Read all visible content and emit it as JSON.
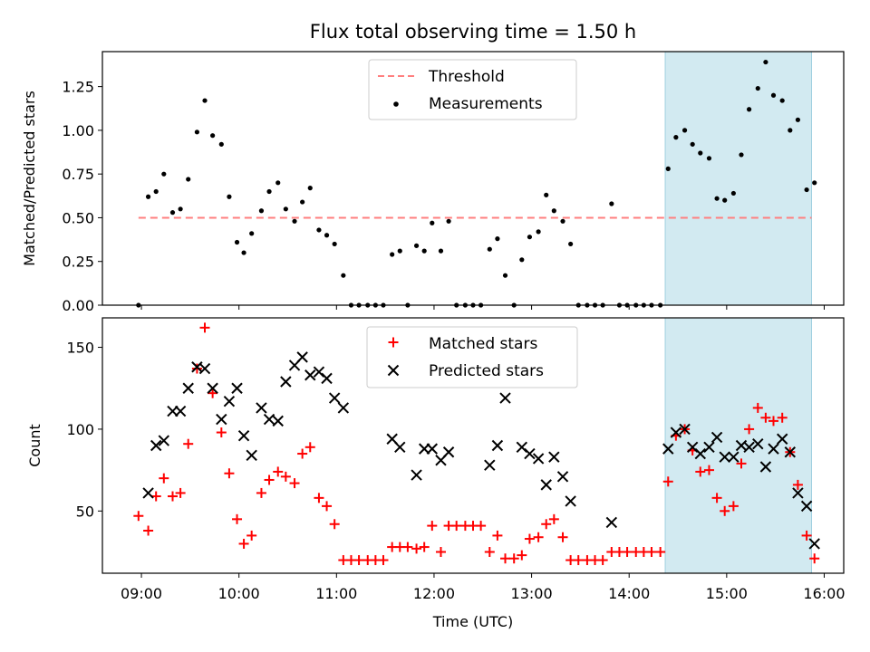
{
  "figure": {
    "title": "Flux total observing time = 1.50 h",
    "xlabel": "Time (UTC)",
    "x_ticks": [
      "09:00",
      "10:00",
      "11:00",
      "12:00",
      "13:00",
      "14:00",
      "15:00",
      "16:00"
    ],
    "x_tick_hours": [
      9,
      10,
      11,
      12,
      13,
      14,
      15,
      16
    ],
    "xlim_hours": [
      8.6,
      16.2
    ],
    "highlight_span_hours": [
      14.37,
      15.87
    ],
    "highlight_color": "#add8e6"
  },
  "chart_data": [
    {
      "type": "scatter",
      "ylabel": "Matched/Predicted stars",
      "ylim": [
        0,
        1.45
      ],
      "y_ticks": [
        "0.00",
        "0.25",
        "0.50",
        "0.75",
        "1.00",
        "1.25"
      ],
      "y_tick_values": [
        0,
        0.25,
        0.5,
        0.75,
        1.0,
        1.25
      ],
      "legend": {
        "placement": "top-center",
        "entries": [
          "Threshold",
          "Measurements"
        ]
      },
      "threshold": {
        "name": "Threshold",
        "value": 0.5,
        "x_range_hours": [
          8.97,
          15.87
        ],
        "color": "#ff7f7f",
        "style": "dashed"
      },
      "series": [
        {
          "name": "Measurements",
          "color": "#000000",
          "marker": "dot",
          "x_hours": [
            8.97,
            9.07,
            9.15,
            9.23,
            9.32,
            9.4,
            9.48,
            9.57,
            9.65,
            9.73,
            9.82,
            9.9,
            9.98,
            10.05,
            10.13,
            10.23,
            10.31,
            10.4,
            10.48,
            10.57,
            10.65,
            10.73,
            10.82,
            10.9,
            10.98,
            11.07,
            11.15,
            11.23,
            11.32,
            11.4,
            11.48,
            11.57,
            11.65,
            11.73,
            11.82,
            11.9,
            11.98,
            12.07,
            12.15,
            12.23,
            12.32,
            12.4,
            12.48,
            12.57,
            12.65,
            12.73,
            12.82,
            12.9,
            12.98,
            13.07,
            13.15,
            13.23,
            13.32,
            13.4,
            13.48,
            13.57,
            13.65,
            13.73,
            13.82,
            13.9,
            13.98,
            14.07,
            14.15,
            14.23,
            14.32,
            14.4,
            14.48,
            14.57,
            14.65,
            14.73,
            14.82,
            14.9,
            14.98,
            15.07,
            15.15,
            15.23,
            15.32,
            15.4,
            15.48,
            15.57,
            15.65,
            15.73,
            15.82,
            15.9
          ],
          "y": [
            0.0,
            0.62,
            0.65,
            0.75,
            0.53,
            0.55,
            0.72,
            0.99,
            1.17,
            0.97,
            0.92,
            0.62,
            0.36,
            0.3,
            0.41,
            0.54,
            0.65,
            0.7,
            0.55,
            0.48,
            0.59,
            0.67,
            0.43,
            0.4,
            0.35,
            0.17,
            0.0,
            0.0,
            0.0,
            0.0,
            0.0,
            0.29,
            0.31,
            0.0,
            0.34,
            0.31,
            0.47,
            0.31,
            0.48,
            0.0,
            0.0,
            0.0,
            0.0,
            0.32,
            0.38,
            0.17,
            0.0,
            0.26,
            0.39,
            0.42,
            0.63,
            0.54,
            0.48,
            0.35,
            0.0,
            0.0,
            0.0,
            0.0,
            0.58,
            0.0,
            0.0,
            0.0,
            0.0,
            0.0,
            0.0,
            0.78,
            0.96,
            1.0,
            0.92,
            0.87,
            0.84,
            0.61,
            0.6,
            0.64,
            0.86,
            1.12,
            1.24,
            1.39,
            1.2,
            1.17,
            1.0,
            1.06,
            0.66,
            0.7
          ]
        }
      ]
    },
    {
      "type": "scatter",
      "ylabel": "Count",
      "ylim": [
        12,
        168
      ],
      "y_ticks": [
        "50",
        "100",
        "150"
      ],
      "y_tick_values": [
        50,
        100,
        150
      ],
      "legend": {
        "placement": "top-center",
        "entries": [
          "Matched stars",
          "Predicted stars"
        ]
      },
      "series": [
        {
          "name": "Matched stars",
          "color": "#ff0000",
          "marker": "plus",
          "x_hours": [
            8.97,
            9.07,
            9.15,
            9.23,
            9.32,
            9.4,
            9.48,
            9.57,
            9.65,
            9.73,
            9.82,
            9.9,
            9.98,
            10.05,
            10.13,
            10.23,
            10.31,
            10.4,
            10.48,
            10.57,
            10.65,
            10.73,
            10.82,
            10.9,
            10.98,
            11.07,
            11.15,
            11.23,
            11.32,
            11.4,
            11.48,
            11.57,
            11.65,
            11.73,
            11.82,
            11.9,
            11.98,
            12.07,
            12.15,
            12.23,
            12.32,
            12.4,
            12.48,
            12.57,
            12.65,
            12.73,
            12.82,
            12.9,
            12.98,
            13.07,
            13.15,
            13.23,
            13.32,
            13.4,
            13.48,
            13.57,
            13.65,
            13.73,
            13.82,
            13.9,
            13.98,
            14.07,
            14.15,
            14.23,
            14.32,
            14.4,
            14.48,
            14.57,
            14.65,
            14.73,
            14.82,
            14.9,
            14.98,
            15.07,
            15.15,
            15.23,
            15.32,
            15.4,
            15.48,
            15.57,
            15.65,
            15.73,
            15.82,
            15.9
          ],
          "y": [
            47,
            38,
            59,
            70,
            59,
            61,
            91,
            137,
            162,
            122,
            98,
            73,
            45,
            30,
            35,
            61,
            69,
            74,
            71,
            67,
            85,
            89,
            58,
            53,
            42,
            20,
            20,
            20,
            20,
            20,
            20,
            28,
            28,
            28,
            27,
            28,
            41,
            25,
            41,
            41,
            41,
            41,
            41,
            25,
            35,
            21,
            21,
            23,
            33,
            34,
            42,
            45,
            34,
            20,
            20,
            20,
            20,
            20,
            25,
            25,
            25,
            25,
            25,
            25,
            25,
            68,
            96,
            100,
            87,
            74,
            75,
            58,
            50,
            53,
            79,
            100,
            113,
            107,
            105,
            107,
            86,
            66,
            35,
            21
          ]
        },
        {
          "name": "Predicted stars",
          "color": "#000000",
          "marker": "x",
          "x_hours": [
            9.07,
            9.15,
            9.23,
            9.32,
            9.4,
            9.48,
            9.57,
            9.65,
            9.73,
            9.82,
            9.9,
            9.98,
            10.05,
            10.13,
            10.23,
            10.31,
            10.4,
            10.48,
            10.57,
            10.65,
            10.73,
            10.82,
            10.9,
            10.98,
            11.07,
            11.57,
            11.65,
            11.82,
            11.9,
            11.98,
            12.07,
            12.15,
            12.57,
            12.65,
            12.73,
            12.9,
            12.98,
            13.07,
            13.15,
            13.23,
            13.32,
            13.4,
            13.82,
            14.4,
            14.48,
            14.57,
            14.65,
            14.73,
            14.82,
            14.9,
            14.98,
            15.07,
            15.15,
            15.23,
            15.32,
            15.4,
            15.48,
            15.57,
            15.65,
            15.73,
            15.82,
            15.9
          ],
          "y": [
            61,
            90,
            93,
            111,
            111,
            125,
            138,
            137,
            125,
            106,
            117,
            125,
            96,
            84,
            113,
            106,
            105,
            129,
            139,
            144,
            133,
            135,
            131,
            119,
            113,
            94,
            89,
            72,
            88,
            88,
            81,
            86,
            78,
            90,
            119,
            89,
            85,
            82,
            66,
            83,
            71,
            56,
            43,
            88,
            98,
            100,
            89,
            85,
            89,
            95,
            83,
            83,
            90,
            89,
            91,
            77,
            88,
            94,
            86,
            61,
            53,
            30
          ]
        }
      ]
    }
  ]
}
